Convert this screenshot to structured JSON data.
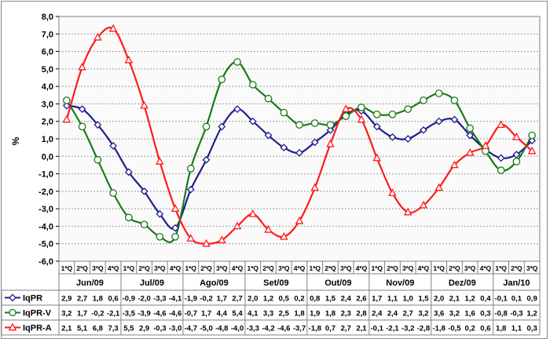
{
  "chart_data": {
    "type": "line",
    "title": "",
    "ylabel": "%",
    "xlabel": "",
    "ylim": [
      -6.0,
      8.0
    ],
    "ytick_step": 1.0,
    "ytick_labels": [
      "-6,0",
      "-5,0",
      "-4,0",
      "-3,0",
      "-2,0",
      "-1,0",
      "0,0",
      "1,0",
      "2,0",
      "3,0",
      "4,0",
      "5,0",
      "6,0",
      "7,0",
      "8,0"
    ],
    "grid": true,
    "legend": "table-bottom",
    "categories": [
      "1ªQ",
      "2ªQ",
      "3ªQ",
      "4ªQ",
      "1ªQ",
      "2ªQ",
      "3ªQ",
      "4ªQ",
      "1ªQ",
      "2ªQ",
      "3ªQ",
      "4ªQ",
      "1ªQ",
      "2ªQ",
      "3ªQ",
      "4ªQ",
      "1ªQ",
      "2ªQ",
      "3ªQ",
      "4ªQ",
      "1ªQ",
      "2ªQ",
      "3ªQ",
      "4ªQ",
      "1ªQ",
      "2ªQ",
      "3ªQ",
      "4ªQ",
      "1ªQ",
      "2ªQ",
      "3ªQ"
    ],
    "months": [
      {
        "label": "Jun/09",
        "count": 4
      },
      {
        "label": "Jul/09",
        "count": 4
      },
      {
        "label": "Ago/09",
        "count": 4
      },
      {
        "label": "Set/09",
        "count": 4
      },
      {
        "label": "Out/09",
        "count": 4
      },
      {
        "label": "Nov/09",
        "count": 4
      },
      {
        "label": "Dez/09",
        "count": 4
      },
      {
        "label": "Jan/10",
        "count": 3
      }
    ],
    "series": [
      {
        "name": "IqPR",
        "color": "#1f1f8f",
        "marker": "diamond",
        "values": [
          2.9,
          2.7,
          1.8,
          0.6,
          -0.9,
          -2.0,
          -3.3,
          -4.1,
          -1.9,
          -0.2,
          1.7,
          2.7,
          2.0,
          1.2,
          0.5,
          0.2,
          0.8,
          1.5,
          2.4,
          2.6,
          1.7,
          1.1,
          1.0,
          1.5,
          2.0,
          2.1,
          1.2,
          0.4,
          -0.1,
          0.1,
          0.9
        ],
        "labels": [
          "2,9",
          "2,7",
          "1,8",
          "0,6",
          "-0,9",
          "-2,0",
          "-3,3",
          "-4,1",
          "-1,9",
          "-0,2",
          "1,7",
          "2,7",
          "2,0",
          "1,2",
          "0,5",
          "0,2",
          "0,8",
          "1,5",
          "2,4",
          "2,6",
          "1,7",
          "1,1",
          "1,0",
          "1,5",
          "2,0",
          "2,1",
          "1,2",
          "0,4",
          "-0,1",
          "0,1",
          "0,9"
        ]
      },
      {
        "name": "IqPR-V",
        "color": "#1a7a1a",
        "marker": "circle",
        "values": [
          3.2,
          1.7,
          -0.2,
          -2.1,
          -3.5,
          -3.9,
          -4.6,
          -4.6,
          -0.7,
          1.7,
          4.4,
          5.4,
          4.1,
          3.3,
          2.5,
          1.8,
          1.9,
          1.8,
          2.3,
          2.8,
          2.4,
          2.4,
          2.7,
          3.2,
          3.6,
          3.2,
          1.6,
          0.3,
          -0.8,
          -0.3,
          1.2
        ],
        "labels": [
          "3,2",
          "1,7",
          "-0,2",
          "-2,1",
          "-3,5",
          "-3,9",
          "-4,6",
          "-4,6",
          "-0,7",
          "1,7",
          "4,4",
          "5,4",
          "4,1",
          "3,3",
          "2,5",
          "1,8",
          "1,9",
          "1,8",
          "2,3",
          "2,8",
          "2,4",
          "2,4",
          "2,7",
          "3,2",
          "3,6",
          "3,2",
          "1,6",
          "0,3",
          "-0,8",
          "-0,3",
          "1,2"
        ]
      },
      {
        "name": "IqPR-A",
        "color": "#ff1a1a",
        "marker": "triangle",
        "values": [
          2.1,
          5.1,
          6.8,
          7.3,
          5.5,
          2.9,
          -0.3,
          -3.0,
          -4.7,
          -5.0,
          -4.8,
          -4.0,
          -3.3,
          -4.2,
          -4.6,
          -3.7,
          -1.8,
          0.7,
          2.7,
          2.1,
          -0.1,
          -2.1,
          -3.2,
          -2.8,
          -1.8,
          -0.5,
          0.2,
          0.6,
          1.8,
          1.1,
          0.3
        ],
        "labels": [
          "2,1",
          "5,1",
          "6,8",
          "7,3",
          "5,5",
          "2,9",
          "-0,3",
          "-3,0",
          "-4,7",
          "-5,0",
          "-4,8",
          "-4,0",
          "-3,3",
          "-4,2",
          "-4,6",
          "-3,7",
          "-1,8",
          "0,7",
          "2,7",
          "2,1",
          "-0,1",
          "-2,1",
          "-3,2",
          "-2,8",
          "-1,8",
          "-0,5",
          "0,2",
          "0,6",
          "1,8",
          "1,1",
          "0,3"
        ]
      }
    ]
  }
}
